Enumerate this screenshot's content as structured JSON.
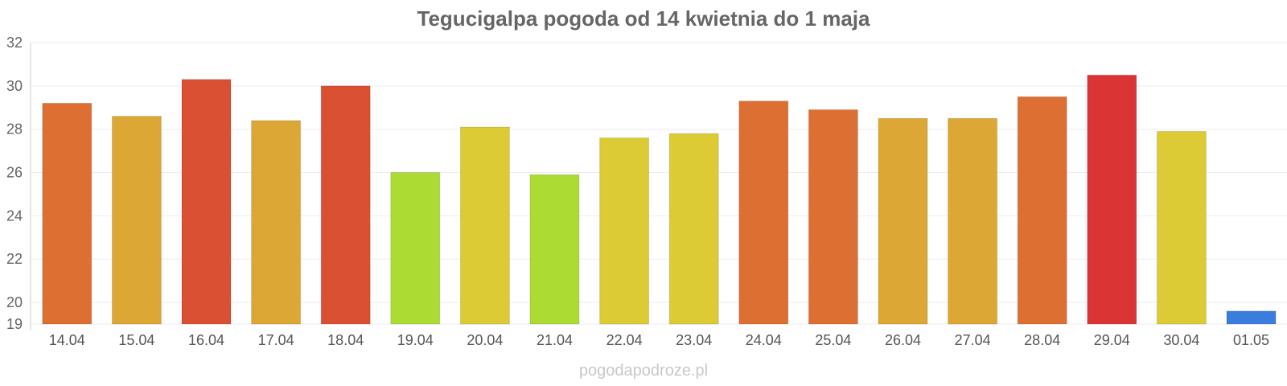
{
  "chart_data": {
    "type": "bar",
    "title": "Tegucigalpa pogoda od 14 kwietnia do 1 maja",
    "xlabel": "",
    "ylabel": "",
    "categories": [
      "14.04",
      "15.04",
      "16.04",
      "17.04",
      "18.04",
      "19.04",
      "20.04",
      "21.04",
      "22.04",
      "23.04",
      "24.04",
      "25.04",
      "26.04",
      "27.04",
      "28.04",
      "29.04",
      "30.04",
      "01.05"
    ],
    "values": [
      29.2,
      28.6,
      30.3,
      28.4,
      30.0,
      26.0,
      28.1,
      25.9,
      27.6,
      27.8,
      29.3,
      28.9,
      28.5,
      28.5,
      29.5,
      30.5,
      27.9,
      19.6
    ],
    "colors": [
      "#dd6f32",
      "#dca734",
      "#da5033",
      "#dca734",
      "#da5033",
      "#acdc34",
      "#dccb34",
      "#acdc34",
      "#dccb34",
      "#dccb34",
      "#dd6f32",
      "#dd6f32",
      "#dca734",
      "#dca734",
      "#dd6f32",
      "#da3434",
      "#dccb34",
      "#3a7ddd"
    ],
    "ylim": [
      19,
      32
    ],
    "yticks": [
      19,
      20,
      22,
      24,
      26,
      28,
      30,
      32
    ],
    "grid": true,
    "legend": "none"
  },
  "watermark": "pogodapodroze.pl"
}
